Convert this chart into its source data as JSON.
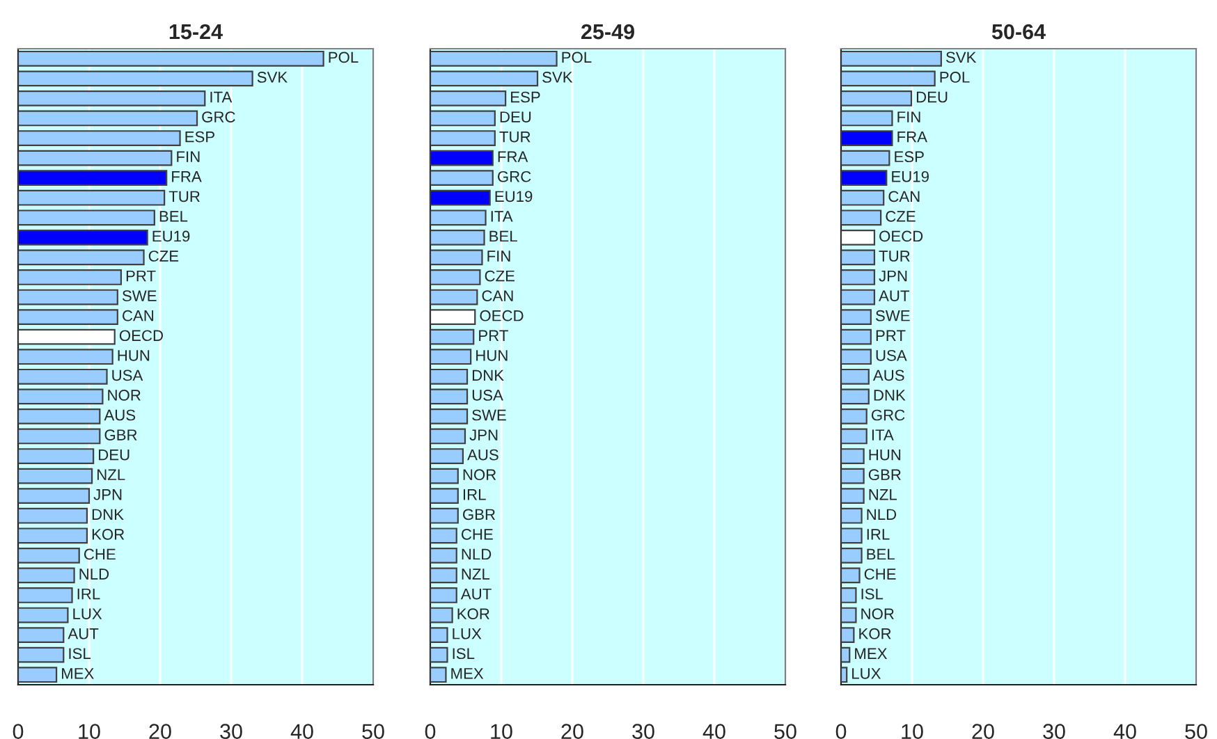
{
  "chart_data": [
    {
      "type": "bar",
      "orientation": "horizontal",
      "title": "15-24",
      "xlim": [
        0,
        50
      ],
      "xticks": [
        0,
        10,
        20,
        30,
        40,
        50
      ],
      "grid": "x",
      "categories": [
        "POL",
        "SVK",
        "ITA",
        "GRC",
        "ESP",
        "FIN",
        "FRA",
        "TUR",
        "BEL",
        "EU19",
        "CZE",
        "PRT",
        "SWE",
        "CAN",
        "OECD",
        "HUN",
        "USA",
        "NOR",
        "AUS",
        "GBR",
        "DEU",
        "NZL",
        "JPN",
        "DNK",
        "KOR",
        "CHE",
        "NLD",
        "IRL",
        "LUX",
        "AUT",
        "ISL",
        "MEX"
      ],
      "values": [
        43.0,
        33.0,
        26.3,
        25.2,
        22.8,
        21.6,
        20.9,
        20.6,
        19.2,
        18.2,
        17.7,
        14.5,
        14.0,
        14.0,
        13.6,
        13.3,
        12.5,
        11.9,
        11.5,
        11.5,
        10.6,
        10.4,
        10.0,
        9.7,
        9.7,
        8.6,
        7.9,
        7.6,
        7.0,
        6.4,
        6.4,
        5.4
      ],
      "colors": [
        "#99ccff",
        "#99ccff",
        "#99ccff",
        "#99ccff",
        "#99ccff",
        "#99ccff",
        "#0000ff",
        "#99ccff",
        "#99ccff",
        "#0000ff",
        "#99ccff",
        "#99ccff",
        "#99ccff",
        "#99ccff",
        "#ffffff",
        "#99ccff",
        "#99ccff",
        "#99ccff",
        "#99ccff",
        "#99ccff",
        "#99ccff",
        "#99ccff",
        "#99ccff",
        "#99ccff",
        "#99ccff",
        "#99ccff",
        "#99ccff",
        "#99ccff",
        "#99ccff",
        "#99ccff",
        "#99ccff",
        "#99ccff"
      ]
    },
    {
      "type": "bar",
      "orientation": "horizontal",
      "title": "25-49",
      "xlim": [
        0,
        50
      ],
      "xticks": [
        0,
        10,
        20,
        30,
        40,
        50
      ],
      "grid": "x",
      "categories": [
        "POL",
        "SVK",
        "ESP",
        "DEU",
        "TUR",
        "FRA",
        "GRC",
        "EU19",
        "ITA",
        "BEL",
        "FIN",
        "CZE",
        "CAN",
        "OECD",
        "PRT",
        "HUN",
        "DNK",
        "USA",
        "SWE",
        "JPN",
        "AUS",
        "NOR",
        "IRL",
        "GBR",
        "CHE",
        "NLD",
        "NZL",
        "AUT",
        "KOR",
        "LUX",
        "ISL",
        "MEX"
      ],
      "values": [
        17.8,
        15.1,
        10.6,
        9.1,
        9.1,
        8.8,
        8.8,
        8.4,
        7.8,
        7.6,
        7.3,
        7.0,
        6.6,
        6.3,
        6.1,
        5.7,
        5.2,
        5.2,
        5.2,
        4.9,
        4.6,
        3.9,
        3.9,
        3.9,
        3.7,
        3.7,
        3.7,
        3.7,
        3.1,
        2.4,
        2.4,
        2.2
      ],
      "colors": [
        "#99ccff",
        "#99ccff",
        "#99ccff",
        "#99ccff",
        "#99ccff",
        "#0000ff",
        "#99ccff",
        "#0000ff",
        "#99ccff",
        "#99ccff",
        "#99ccff",
        "#99ccff",
        "#99ccff",
        "#ffffff",
        "#99ccff",
        "#99ccff",
        "#99ccff",
        "#99ccff",
        "#99ccff",
        "#99ccff",
        "#99ccff",
        "#99ccff",
        "#99ccff",
        "#99ccff",
        "#99ccff",
        "#99ccff",
        "#99ccff",
        "#99ccff",
        "#99ccff",
        "#99ccff",
        "#99ccff",
        "#99ccff"
      ]
    },
    {
      "type": "bar",
      "orientation": "horizontal",
      "title": "50-64",
      "xlim": [
        0,
        50
      ],
      "xticks": [
        0,
        10,
        20,
        30,
        40,
        50
      ],
      "grid": "x",
      "categories": [
        "SVK",
        "POL",
        "DEU",
        "FIN",
        "FRA",
        "ESP",
        "EU19",
        "CAN",
        "CZE",
        "OECD",
        "TUR",
        "JPN",
        "AUT",
        "SWE",
        "PRT",
        "USA",
        "AUS",
        "DNK",
        "GRC",
        "ITA",
        "HUN",
        "GBR",
        "NZL",
        "NLD",
        "IRL",
        "BEL",
        "CHE",
        "ISL",
        "NOR",
        "KOR",
        "MEX",
        "LUX"
      ],
      "values": [
        14.1,
        13.2,
        9.9,
        7.2,
        7.2,
        6.8,
        6.4,
        6.0,
        5.6,
        4.7,
        4.7,
        4.7,
        4.7,
        4.2,
        4.2,
        4.2,
        3.9,
        3.9,
        3.6,
        3.6,
        3.2,
        3.2,
        3.2,
        2.9,
        2.9,
        2.9,
        2.6,
        2.1,
        2.1,
        1.8,
        1.2,
        0.8
      ],
      "colors": [
        "#99ccff",
        "#99ccff",
        "#99ccff",
        "#99ccff",
        "#0000ff",
        "#99ccff",
        "#0000ff",
        "#99ccff",
        "#99ccff",
        "#ffffff",
        "#99ccff",
        "#99ccff",
        "#99ccff",
        "#99ccff",
        "#99ccff",
        "#99ccff",
        "#99ccff",
        "#99ccff",
        "#99ccff",
        "#99ccff",
        "#99ccff",
        "#99ccff",
        "#99ccff",
        "#99ccff",
        "#99ccff",
        "#99ccff",
        "#99ccff",
        "#99ccff",
        "#99ccff",
        "#99ccff",
        "#99ccff",
        "#99ccff"
      ]
    }
  ]
}
